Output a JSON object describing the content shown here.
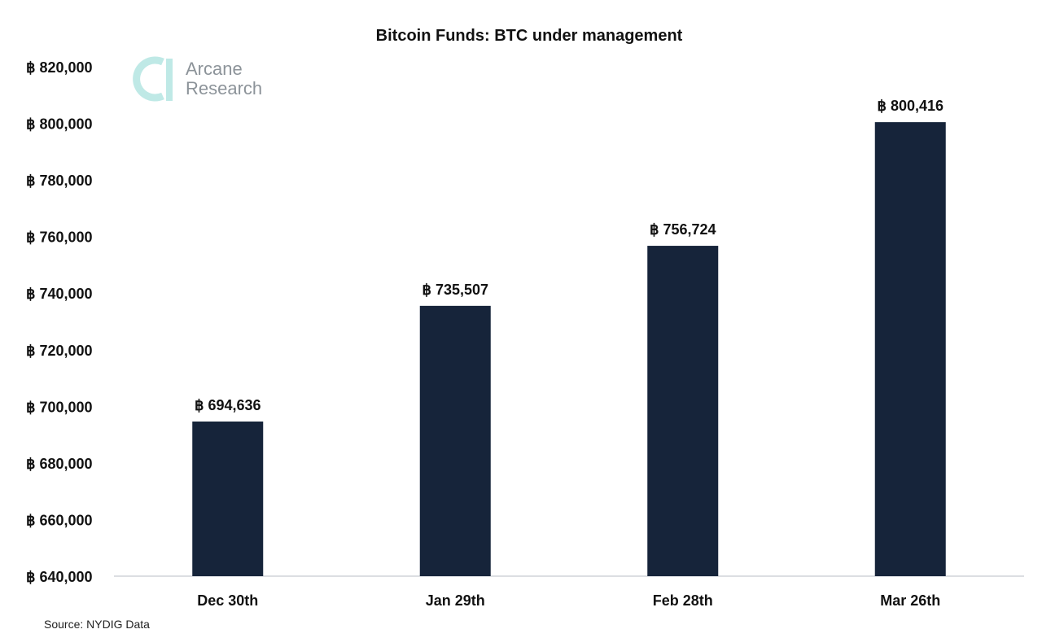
{
  "chart_data": {
    "type": "bar",
    "title": "Bitcoin Funds: BTC under management",
    "xlabel": "",
    "ylabel": "",
    "categories": [
      "Dec 30th",
      "Jan 29th",
      "Feb 28th",
      "Mar 26th"
    ],
    "values": [
      694636,
      735507,
      756724,
      800416
    ],
    "data_labels": [
      "฿ 694,636",
      "฿ 735,507",
      "฿ 756,724",
      "฿ 800,416"
    ],
    "ylim": [
      640000,
      820000
    ],
    "yticks": [
      640000,
      660000,
      680000,
      700000,
      720000,
      740000,
      760000,
      780000,
      800000,
      820000
    ],
    "ytick_labels": [
      "฿ 640,000",
      "฿ 660,000",
      "฿ 680,000",
      "฿ 700,000",
      "฿ 720,000",
      "฿ 740,000",
      "฿ 760,000",
      "฿ 780,000",
      "฿ 800,000",
      "฿ 820,000"
    ],
    "grid": false,
    "legend": "none"
  },
  "source": "Source: NYDIG Data",
  "brand": {
    "line1": "Arcane",
    "line2": "Research",
    "logo_icon": "arcane-logo-icon"
  },
  "colors": {
    "bar": "#16243a",
    "axis": "#d0d4d8",
    "logo": "#bfe9e6"
  }
}
